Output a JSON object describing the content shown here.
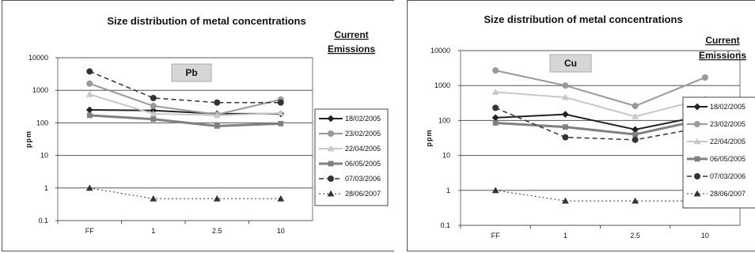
{
  "chart_data": [
    {
      "type": "line",
      "title": "Size distribution of metal concentrations",
      "element_label": "Pb",
      "side_label": [
        "Current",
        "Emissions"
      ],
      "ylabel": "ppm",
      "yscale": "log",
      "ylim": [
        0.1,
        10000
      ],
      "yticks": [
        "0.1",
        "1",
        "10",
        "100",
        "1000",
        "10000"
      ],
      "categories": [
        "FF",
        "1",
        "2.5",
        "10"
      ],
      "grid": "horizontal",
      "legend_position": "right",
      "series": [
        {
          "name": "18/02/2005",
          "values": [
            250,
            240,
            190,
            190
          ],
          "color": "#222222",
          "marker": "diamond",
          "dash": "solid",
          "width": 2
        },
        {
          "name": "23/02/2005",
          "values": [
            1600,
            330,
            180,
            520
          ],
          "color": "#999999",
          "marker": "circle",
          "dash": "solid",
          "width": 2
        },
        {
          "name": "22/04/2005",
          "values": [
            750,
            190,
            170,
            200
          ],
          "color": "#c8c8c8",
          "marker": "triangle",
          "dash": "solid",
          "width": 2
        },
        {
          "name": "06/05/2005",
          "values": [
            170,
            130,
            80,
            95
          ],
          "color": "#808080",
          "marker": "square",
          "dash": "solid",
          "width": 3
        },
        {
          "name": "07/03/2006",
          "values": [
            3800,
            580,
            420,
            420
          ],
          "color": "#333333",
          "marker": "circle",
          "dash": "6,4",
          "width": 1.5
        },
        {
          "name": "28/06/2007",
          "values": [
            1,
            0.47,
            0.47,
            0.47
          ],
          "color": "#333333",
          "marker": "triangle",
          "dash": "2,3",
          "width": 1
        }
      ]
    },
    {
      "type": "line",
      "title": "Size distribution of metal concentrations",
      "element_label": "Cu",
      "side_label": [
        "Current",
        "Emissions"
      ],
      "ylabel": "ppm",
      "yscale": "log",
      "ylim": [
        0.1,
        10000
      ],
      "yticks": [
        "0.1",
        "1",
        "10",
        "100",
        "1000",
        "10000"
      ],
      "categories": [
        "FF",
        "1",
        "2.5",
        "10"
      ],
      "grid": "horizontal",
      "legend_position": "right",
      "series": [
        {
          "name": "18/02/2005",
          "values": [
            120,
            150,
            55,
            140
          ],
          "color": "#222222",
          "marker": "diamond",
          "dash": "solid",
          "width": 2
        },
        {
          "name": "23/02/2005",
          "values": [
            2700,
            1000,
            260,
            1700
          ],
          "color": "#999999",
          "marker": "circle",
          "dash": "solid",
          "width": 2
        },
        {
          "name": "22/04/2005",
          "values": [
            650,
            460,
            130,
            420
          ],
          "color": "#c8c8c8",
          "marker": "triangle",
          "dash": "solid",
          "width": 2
        },
        {
          "name": "06/05/2005",
          "values": [
            85,
            65,
            40,
            110
          ],
          "color": "#808080",
          "marker": "square",
          "dash": "solid",
          "width": 3
        },
        {
          "name": "07/03/2006",
          "values": [
            230,
            33,
            28,
            65
          ],
          "color": "#333333",
          "marker": "circle",
          "dash": "6,4",
          "width": 1.5
        },
        {
          "name": "28/06/2007",
          "values": [
            1,
            0.5,
            0.5,
            0.5
          ],
          "color": "#333333",
          "marker": "triangle",
          "dash": "2,3",
          "width": 1
        }
      ]
    }
  ]
}
